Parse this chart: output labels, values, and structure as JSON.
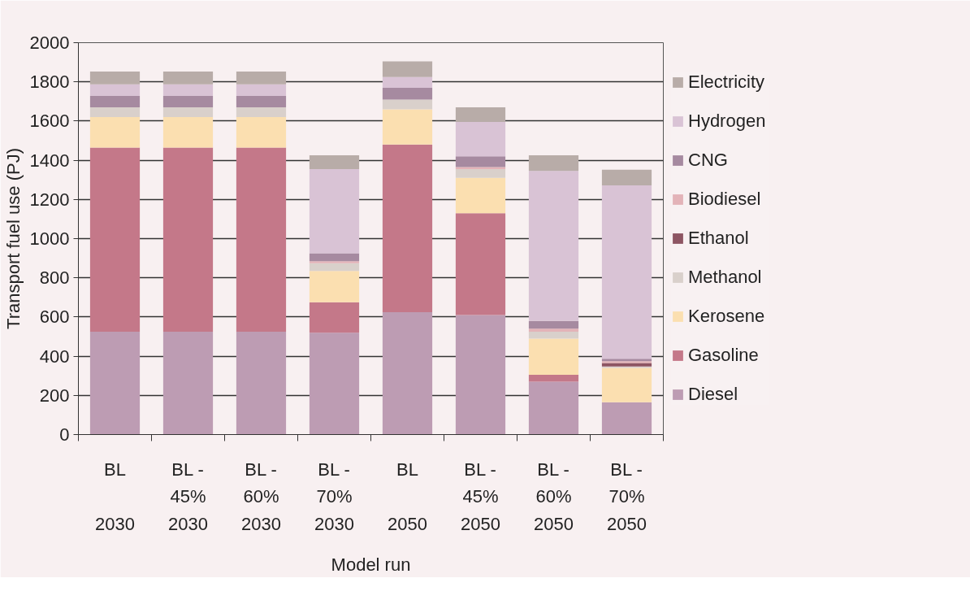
{
  "chart_data": {
    "type": "bar",
    "stacked": true,
    "xlabel": "Model run",
    "ylabel": "Transport fuel use (PJ)",
    "categories": [
      "BL\n\n2030",
      "BL -\n45%\n2030",
      "BL -\n60%\n2030",
      "BL -\n70%\n2030",
      "BL\n\n2050",
      "BL -\n45%\n2050",
      "BL -\n60%\n2050",
      "BL -\n70%\n2050"
    ],
    "series": [
      {
        "name": "Diesel",
        "color": "#bd9cb3",
        "values": [
          525,
          525,
          525,
          520,
          625,
          610,
          270,
          165
        ]
      },
      {
        "name": "Gasoline",
        "color": "#c47889",
        "values": [
          940,
          940,
          940,
          155,
          855,
          520,
          35,
          0
        ]
      },
      {
        "name": "Kerosene",
        "color": "#fbdfb0",
        "values": [
          155,
          155,
          155,
          160,
          180,
          180,
          185,
          175
        ]
      },
      {
        "name": "Methanol",
        "color": "#d9d0cb",
        "values": [
          50,
          50,
          50,
          40,
          50,
          45,
          35,
          7
        ]
      },
      {
        "name": "Ethanol",
        "color": "#8d5563",
        "values": [
          0,
          0,
          0,
          0,
          0,
          0,
          0,
          18
        ]
      },
      {
        "name": "Biodiesel",
        "color": "#e3b3b8",
        "values": [
          0,
          0,
          0,
          10,
          0,
          10,
          15,
          10
        ]
      },
      {
        "name": "CNG",
        "color": "#a68aa0",
        "values": [
          58,
          58,
          58,
          40,
          60,
          55,
          40,
          12
        ]
      },
      {
        "name": "Hydrogen",
        "color": "#d9c3d5",
        "values": [
          59,
          59,
          59,
          430,
          55,
          175,
          765,
          885
        ]
      },
      {
        "name": "Electricity",
        "color": "#b8aca8",
        "values": [
          66,
          66,
          66,
          70,
          80,
          75,
          80,
          80
        ]
      }
    ],
    "ylim": [
      0,
      2000
    ],
    "yticks": [
      0,
      200,
      400,
      600,
      800,
      1000,
      1200,
      1400,
      1600,
      1800,
      2000
    ],
    "grid": "y",
    "legend": "right"
  }
}
